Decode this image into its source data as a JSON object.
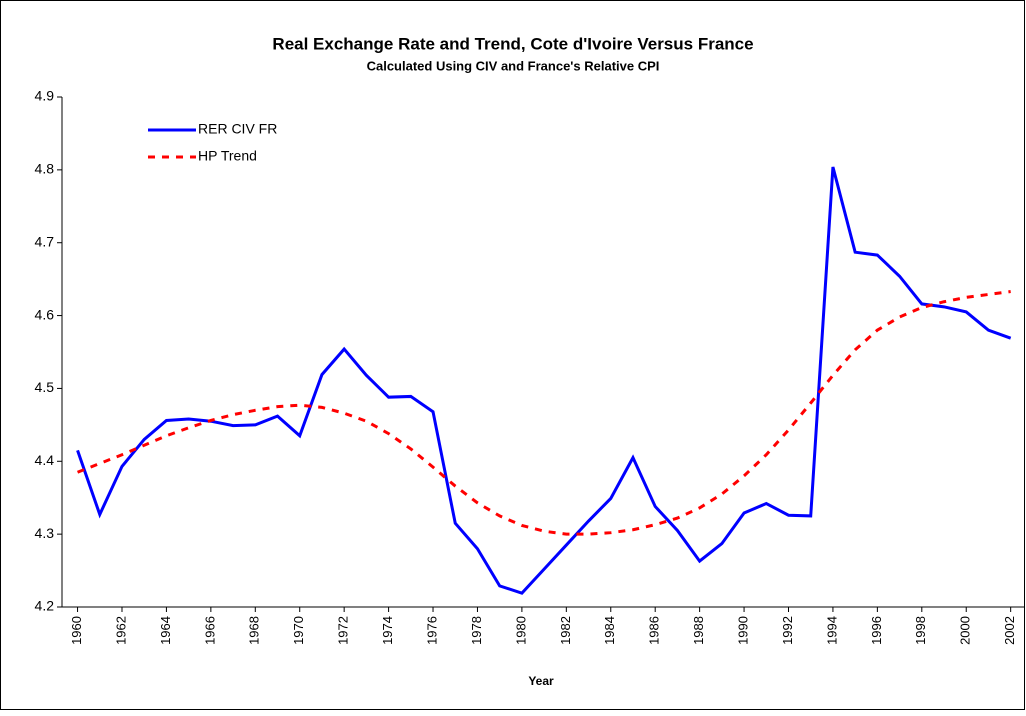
{
  "chart_data": {
    "type": "line",
    "title": "Real Exchange Rate and Trend, Cote d'Ivoire Versus France",
    "subtitle": "Calculated Using CIV and France's Relative CPI",
    "x_label": "Year",
    "x": [
      1960,
      1961,
      1962,
      1963,
      1964,
      1965,
      1966,
      1967,
      1968,
      1969,
      1970,
      1971,
      1972,
      1973,
      1974,
      1975,
      1976,
      1977,
      1978,
      1979,
      1980,
      1981,
      1982,
      1983,
      1984,
      1985,
      1986,
      1987,
      1988,
      1989,
      1990,
      1991,
      1992,
      1993,
      1994,
      1995,
      1996,
      1997,
      1998,
      1999,
      2000,
      2001,
      2002
    ],
    "series": [
      {
        "name": "RER CIV FR",
        "color": "#0000ff",
        "style": "solid",
        "values": [
          4.415,
          4.327,
          4.393,
          4.43,
          4.456,
          4.458,
          4.455,
          4.449,
          4.45,
          4.462,
          4.435,
          4.519,
          4.554,
          4.518,
          4.488,
          4.489,
          4.468,
          4.315,
          4.28,
          4.229,
          4.219,
          4.252,
          4.285,
          4.318,
          4.349,
          4.405,
          4.338,
          4.305,
          4.263,
          4.287,
          4.329,
          4.342,
          4.326,
          4.325,
          4.804,
          4.687,
          4.683,
          4.654,
          4.616,
          4.612,
          4.605,
          4.58,
          4.569
        ]
      },
      {
        "name": "HP Trend",
        "color": "#ff0000",
        "style": "dashed",
        "values": [
          4.385,
          4.397,
          4.409,
          4.422,
          4.435,
          4.446,
          4.456,
          4.464,
          4.47,
          4.475,
          4.477,
          4.474,
          4.466,
          4.455,
          4.438,
          4.417,
          4.392,
          4.366,
          4.343,
          4.325,
          4.312,
          4.304,
          4.3,
          4.3,
          4.302,
          4.306,
          4.313,
          4.322,
          4.336,
          4.355,
          4.38,
          4.409,
          4.443,
          4.48,
          4.518,
          4.553,
          4.58,
          4.598,
          4.611,
          4.619,
          4.625,
          4.629,
          4.633
        ]
      }
    ],
    "xlim": [
      1959.3,
      2002.6
    ],
    "xticks": [
      1960,
      1962,
      1964,
      1966,
      1968,
      1970,
      1972,
      1974,
      1976,
      1978,
      1980,
      1982,
      1984,
      1986,
      1988,
      1990,
      1992,
      1994,
      1996,
      1998,
      2000,
      2002
    ],
    "ylim": [
      4.2,
      4.9
    ],
    "yticks": [
      4.2,
      4.3,
      4.4,
      4.5,
      4.6,
      4.7,
      4.8,
      4.9
    ],
    "legend": "upper-left"
  }
}
